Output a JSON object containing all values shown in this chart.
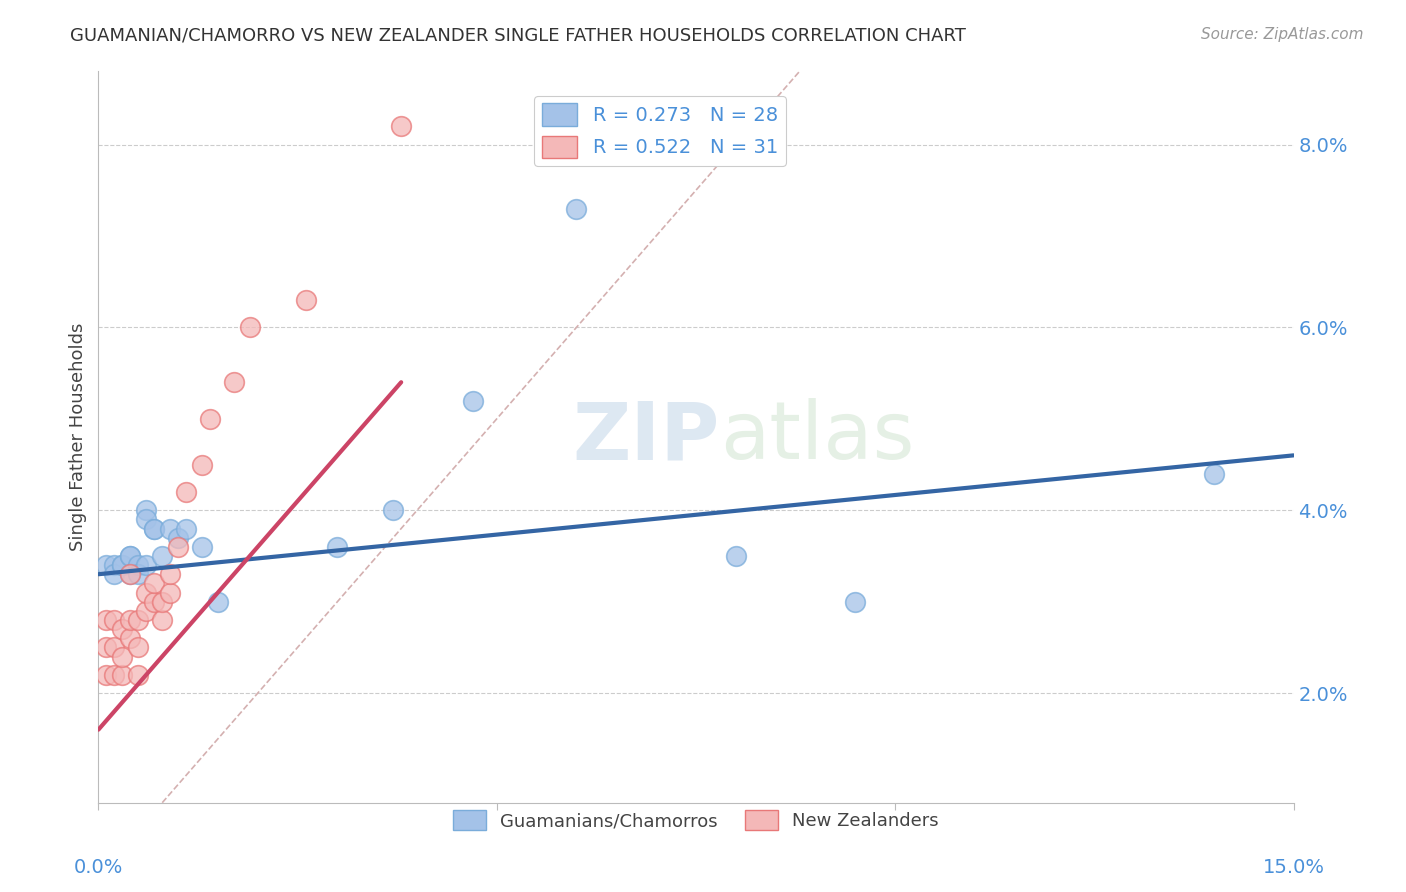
{
  "title": "GUAMANIAN/CHAMORRO VS NEW ZEALANDER SINGLE FATHER HOUSEHOLDS CORRELATION CHART",
  "source": "Source: ZipAtlas.com",
  "ylabel": "Single Father Households",
  "right_yticks": [
    "2.0%",
    "4.0%",
    "6.0%",
    "8.0%"
  ],
  "right_ytick_vals": [
    0.02,
    0.04,
    0.06,
    0.08
  ],
  "xlim": [
    0.0,
    0.15
  ],
  "ylim": [
    0.008,
    0.088
  ],
  "watermark": "ZIPatlas",
  "legend_blue_r": "R = 0.273",
  "legend_blue_n": "N = 28",
  "legend_pink_r": "R = 0.522",
  "legend_pink_n": "N = 31",
  "blue_color": "#a4c2e8",
  "pink_color": "#f4b8b8",
  "blue_edge_color": "#7aacda",
  "pink_edge_color": "#e87878",
  "blue_line_color": "#3465a4",
  "pink_line_color": "#cc4466",
  "diagonal_color": "#d4b0b0",
  "blue_scatter_x": [
    0.001,
    0.002,
    0.002,
    0.003,
    0.003,
    0.004,
    0.004,
    0.004,
    0.005,
    0.005,
    0.006,
    0.006,
    0.006,
    0.007,
    0.007,
    0.008,
    0.009,
    0.01,
    0.011,
    0.013,
    0.015,
    0.03,
    0.037,
    0.047,
    0.06,
    0.08,
    0.095,
    0.14
  ],
  "blue_scatter_y": [
    0.034,
    0.034,
    0.033,
    0.034,
    0.034,
    0.035,
    0.035,
    0.033,
    0.034,
    0.033,
    0.04,
    0.039,
    0.034,
    0.038,
    0.038,
    0.035,
    0.038,
    0.037,
    0.038,
    0.036,
    0.03,
    0.036,
    0.04,
    0.052,
    0.073,
    0.035,
    0.03,
    0.044
  ],
  "pink_scatter_x": [
    0.001,
    0.001,
    0.001,
    0.002,
    0.002,
    0.002,
    0.003,
    0.003,
    0.003,
    0.004,
    0.004,
    0.004,
    0.005,
    0.005,
    0.005,
    0.006,
    0.006,
    0.007,
    0.007,
    0.008,
    0.008,
    0.009,
    0.009,
    0.01,
    0.011,
    0.013,
    0.014,
    0.017,
    0.019,
    0.026,
    0.038
  ],
  "pink_scatter_y": [
    0.022,
    0.025,
    0.028,
    0.022,
    0.025,
    0.028,
    0.022,
    0.024,
    0.027,
    0.026,
    0.028,
    0.033,
    0.022,
    0.025,
    0.028,
    0.029,
    0.031,
    0.03,
    0.032,
    0.028,
    0.03,
    0.031,
    0.033,
    0.036,
    0.042,
    0.045,
    0.05,
    0.054,
    0.06,
    0.063,
    0.082
  ],
  "blue_trend_x": [
    0.0,
    0.15
  ],
  "blue_trend_y": [
    0.033,
    0.046
  ],
  "pink_trend_x": [
    0.0,
    0.038
  ],
  "pink_trend_y": [
    0.016,
    0.054
  ],
  "bottom_legend_labels": [
    "Guamanians/Chamorros",
    "New Zealanders"
  ]
}
